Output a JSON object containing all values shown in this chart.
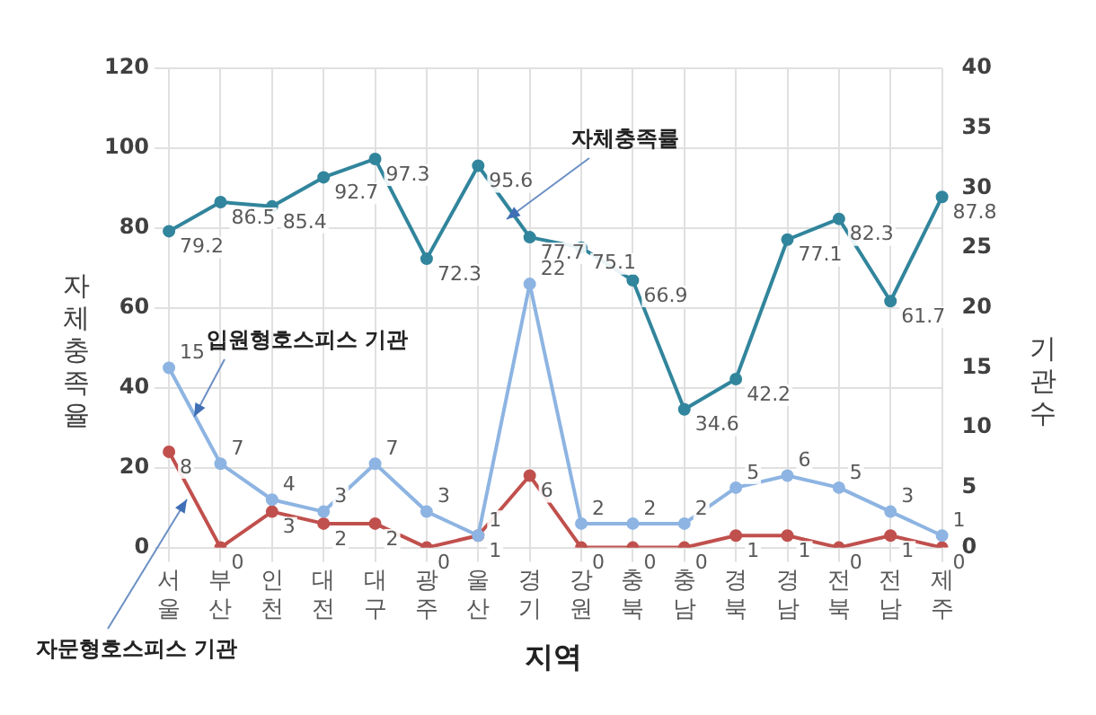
{
  "chart_data": {
    "type": "line",
    "xlabel": "지역",
    "ylabel": "자체충족율",
    "y2label": "기관수",
    "categories": [
      "서울",
      "부산",
      "인천",
      "대전",
      "대구",
      "광주",
      "울산",
      "경기",
      "강원",
      "충북",
      "충남",
      "경북",
      "경남",
      "전북",
      "전남",
      "제주"
    ],
    "series": [
      {
        "name": "자체충족률",
        "color": "#31859c",
        "values": [
          79.2,
          86.5,
          85.4,
          92.7,
          97.3,
          72.3,
          95.6,
          77.7,
          75.1,
          66.9,
          34.6,
          42.2,
          77.1,
          82.3,
          61.7,
          87.8
        ]
      },
      {
        "name": "입원형호스피스 기관",
        "color": "#8db4e2",
        "axis": "y2",
        "values": [
          15,
          7,
          4,
          3,
          7,
          3,
          1,
          22,
          2,
          2,
          2,
          5,
          6,
          5,
          3,
          1
        ]
      },
      {
        "name": "자문형호스피스 기관",
        "color": "#c0504d",
        "axis": "y2",
        "values": [
          8,
          0,
          3,
          2,
          2,
          0,
          1,
          6,
          0,
          0,
          0,
          1,
          1,
          0,
          1,
          0
        ]
      }
    ],
    "ylim": [
      0,
      120
    ],
    "yticks": [
      0,
      20,
      40,
      60,
      80,
      100,
      120
    ],
    "y2lim": [
      0,
      40
    ],
    "y2ticks": [
      0,
      5,
      10,
      15,
      20,
      25,
      30,
      35,
      40
    ],
    "grid": true,
    "legend": false,
    "marker": "circle",
    "line_style": "solid",
    "data_labels": true
  }
}
